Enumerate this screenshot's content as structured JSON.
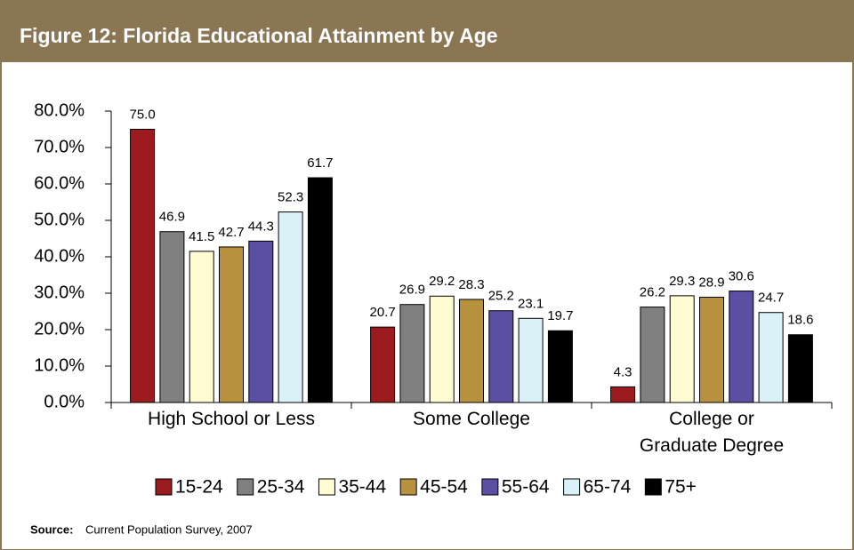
{
  "chart_data": {
    "type": "bar",
    "title": "Figure 12:  Florida Educational Attainment by Age",
    "categories": [
      "High School or Less",
      "Some College",
      "College or\nGraduate Degree"
    ],
    "series": [
      {
        "name": "15-24",
        "color": "#9b1b1f",
        "values": [
          75,
          20.7,
          4.3
        ],
        "value_labels": [
          "75.0",
          "20.7",
          "4.3"
        ]
      },
      {
        "name": "25-34",
        "color": "#808080",
        "values": [
          46.9,
          26.9,
          26.2
        ],
        "value_labels": [
          "46.9",
          "26.9",
          "26.2"
        ]
      },
      {
        "name": "35-44",
        "color": "#fffbd2",
        "values": [
          41.5,
          29.2,
          29.3
        ],
        "value_labels": [
          "41.5",
          "29.2",
          "29.3"
        ]
      },
      {
        "name": "45-54",
        "color": "#b8913f",
        "values": [
          42.7,
          28.3,
          28.9
        ],
        "value_labels": [
          "42.7",
          "28.3",
          "28.9"
        ]
      },
      {
        "name": "55-64",
        "color": "#5a4fa3",
        "values": [
          44.3,
          25.2,
          30.6
        ],
        "value_labels": [
          "44.3",
          "25.2",
          "30.6"
        ]
      },
      {
        "name": "65-74",
        "color": "#d9f1f7",
        "values": [
          52.3,
          23.1,
          24.7
        ],
        "value_labels": [
          "52.3",
          "23.1",
          "24.7"
        ]
      },
      {
        "name": "75+",
        "color": "#000000",
        "values": [
          61.7,
          19.7,
          18.6
        ],
        "value_labels": [
          "61.7",
          "19.7",
          "18.6"
        ]
      }
    ],
    "ylim": [
      0,
      80
    ],
    "yticks": [
      {
        "value": 0,
        "label": "0.0%"
      },
      {
        "value": 10,
        "label": "10.0%"
      },
      {
        "value": 20,
        "label": "20.0%"
      },
      {
        "value": 30,
        "label": "30.0%"
      },
      {
        "value": 40,
        "label": "40.0%"
      },
      {
        "value": 50,
        "label": "50.0%"
      },
      {
        "value": 60,
        "label": "60.0%"
      },
      {
        "value": 70,
        "label": "70.0%"
      },
      {
        "value": 80,
        "label": "80.0%"
      }
    ],
    "legend": "bottom",
    "source": {
      "label": "Source:",
      "text": "Current Population Survey, 2007"
    }
  }
}
